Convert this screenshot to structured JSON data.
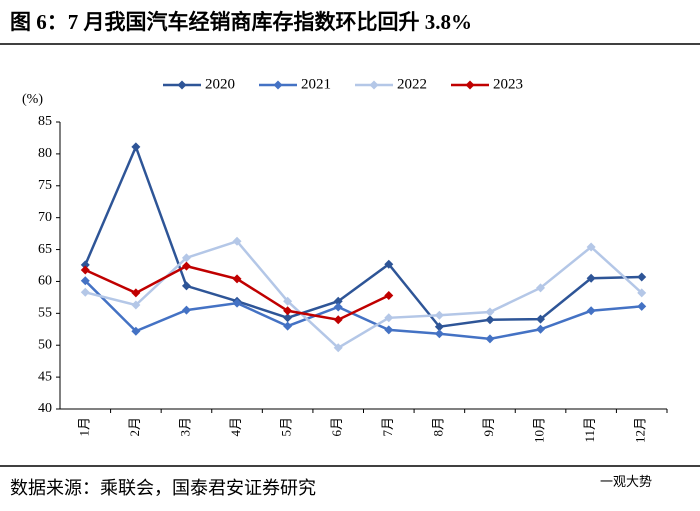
{
  "title": "图 6：7 月我国汽车经销商库存指数环比回升 3.8%",
  "source": "数据来源：乘联会，国泰君安证券研究",
  "watermark": "一观大势",
  "chart_data": {
    "type": "line",
    "y_label": "(%)",
    "categories": [
      "1月",
      "2月",
      "3月",
      "4月",
      "5月",
      "6月",
      "7月",
      "8月",
      "9月",
      "10月",
      "11月",
      "12月"
    ],
    "series": [
      {
        "name": "2020",
        "color": "#2e5597",
        "values": [
          62.6,
          81.1,
          59.3,
          56.9,
          54.3,
          56.9,
          62.7,
          52.9,
          54.0,
          54.1,
          60.5,
          60.7
        ]
      },
      {
        "name": "2021",
        "color": "#4472c4",
        "values": [
          60.1,
          52.2,
          55.5,
          56.6,
          53.0,
          56.0,
          52.4,
          51.8,
          51.0,
          52.5,
          55.4,
          56.1
        ]
      },
      {
        "name": "2022",
        "color": "#b4c7e7",
        "values": [
          58.3,
          56.3,
          63.7,
          66.3,
          56.9,
          49.6,
          54.3,
          54.7,
          55.2,
          59.0,
          65.4,
          58.2
        ]
      },
      {
        "name": "2023",
        "color": "#c00000",
        "values": [
          61.8,
          58.2,
          62.4,
          60.4,
          55.4,
          54.0,
          57.8,
          null,
          null,
          null,
          null,
          null
        ]
      }
    ],
    "ylim": [
      40,
      85
    ],
    "yticks": [
      40,
      45,
      50,
      55,
      60,
      65,
      70,
      75,
      80,
      85
    ],
    "legend": "top"
  }
}
